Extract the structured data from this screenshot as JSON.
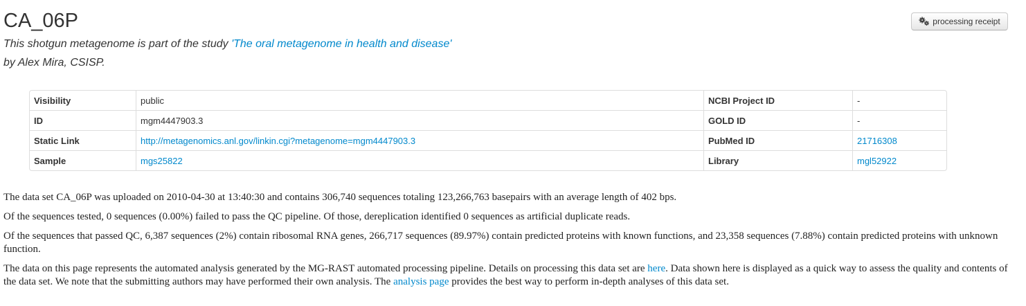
{
  "header": {
    "title": "CA_06P",
    "receipt_button_label": "processing receipt",
    "receipt_icon": "gears-icon"
  },
  "study": {
    "prefix": "This shotgun metagenome is part of the study ",
    "study_link": "'The oral metagenome in health and disease'",
    "author_line": "by Alex Mira, CSISP."
  },
  "table": {
    "rows": [
      {
        "l1": "Visibility",
        "v1": "public",
        "l2": "NCBI Project ID",
        "v2": "-"
      },
      {
        "l1": "ID",
        "v1": "mgm4447903.3",
        "l2": "GOLD ID",
        "v2": "-"
      },
      {
        "l1": "Static Link",
        "v1": "http://metagenomics.anl.gov/linkin.cgi?metagenome=mgm4447903.3",
        "l2": "PubMed ID",
        "v2": "21716308"
      },
      {
        "l1": "Sample",
        "v1": "mgs25822",
        "l2": "Library",
        "v2": "mgl52922"
      }
    ]
  },
  "summary": {
    "p1": "The data set CA_06P was uploaded on 2010-04-30 at 13:40:30 and contains 306,740 sequences totaling 123,266,763 basepairs with an average length of 402 bps.",
    "p2": "Of the sequences tested, 0 sequences (0.00%) failed to pass the QC pipeline. Of those, dereplication identified 0 sequences as artificial duplicate reads.",
    "p3": "Of the sequences that passed QC, 6,387 sequences (2%) contain ribosomal RNA genes, 266,717 sequences (89.97%) contain predicted proteins with known functions, and 23,358 sequences (7.88%) contain predicted proteins with unknown function.",
    "p4_a": "The data on this page represents the automated analysis generated by the MG-RAST automated processing pipeline. Details on processing this data set are ",
    "p4_link1": "here",
    "p4_b": ". Data shown here is displayed as a quick way to assess the quality and contents of the data set. We note that the submitting authors may have performed their own analysis. The ",
    "p4_link2": "analysis page",
    "p4_c": " provides the best way to perform in-depth analyses of this data set."
  },
  "colors": {
    "link": "#0088cc",
    "text": "#333333",
    "border": "#dddddd"
  }
}
